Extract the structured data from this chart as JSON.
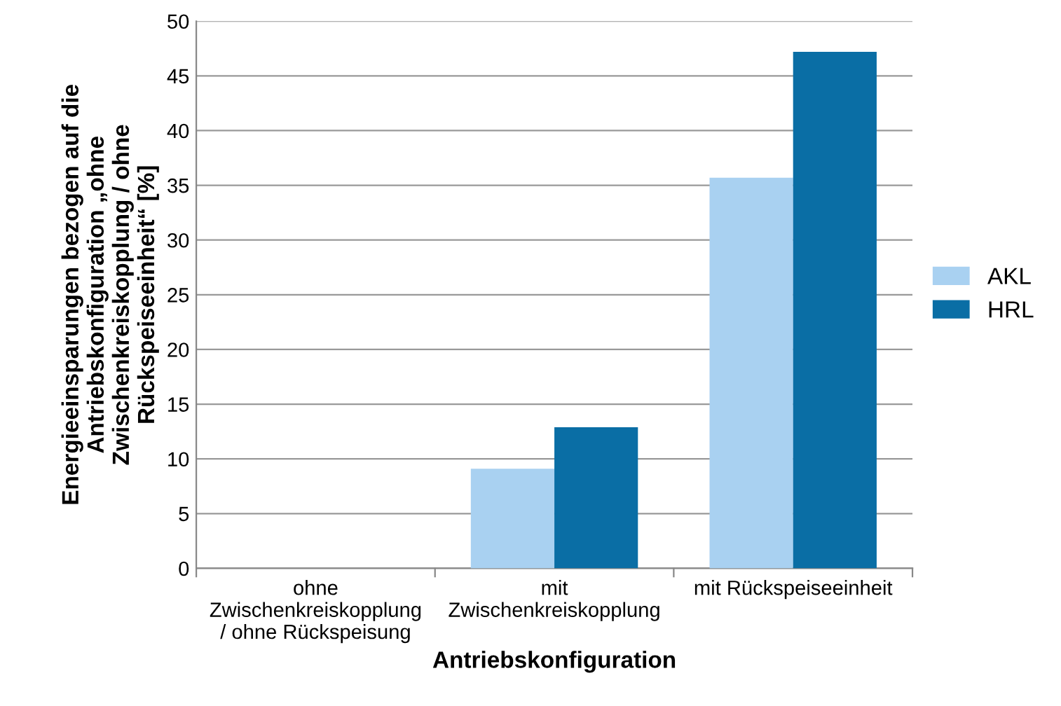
{
  "chart_data": {
    "type": "bar",
    "xlabel": "Antriebskonfiguration",
    "ylabel": "Energieeinsparungen bezogen auf die\nAntriebskonfiguration „ohne\nZwischenkreiskopplung / ohne\nRückspeiseeinheit“ [%]",
    "categories": [
      "ohne\nZwischenkreiskopplung\n/ ohne Rückspeisung",
      "mit\nZwischenkreiskopplung",
      "mit Rückspeiseeinheit"
    ],
    "series": [
      {
        "name": "AKL",
        "color": "#a9d1f1",
        "values": [
          0,
          9.1,
          35.7
        ]
      },
      {
        "name": "HRL",
        "color": "#0a6ea5",
        "values": [
          0,
          12.9,
          47.2
        ]
      }
    ],
    "ylim": [
      0,
      50
    ],
    "yticks": [
      0,
      5,
      10,
      15,
      20,
      25,
      30,
      35,
      40,
      45,
      50
    ],
    "grid": "y",
    "legend": "right"
  }
}
